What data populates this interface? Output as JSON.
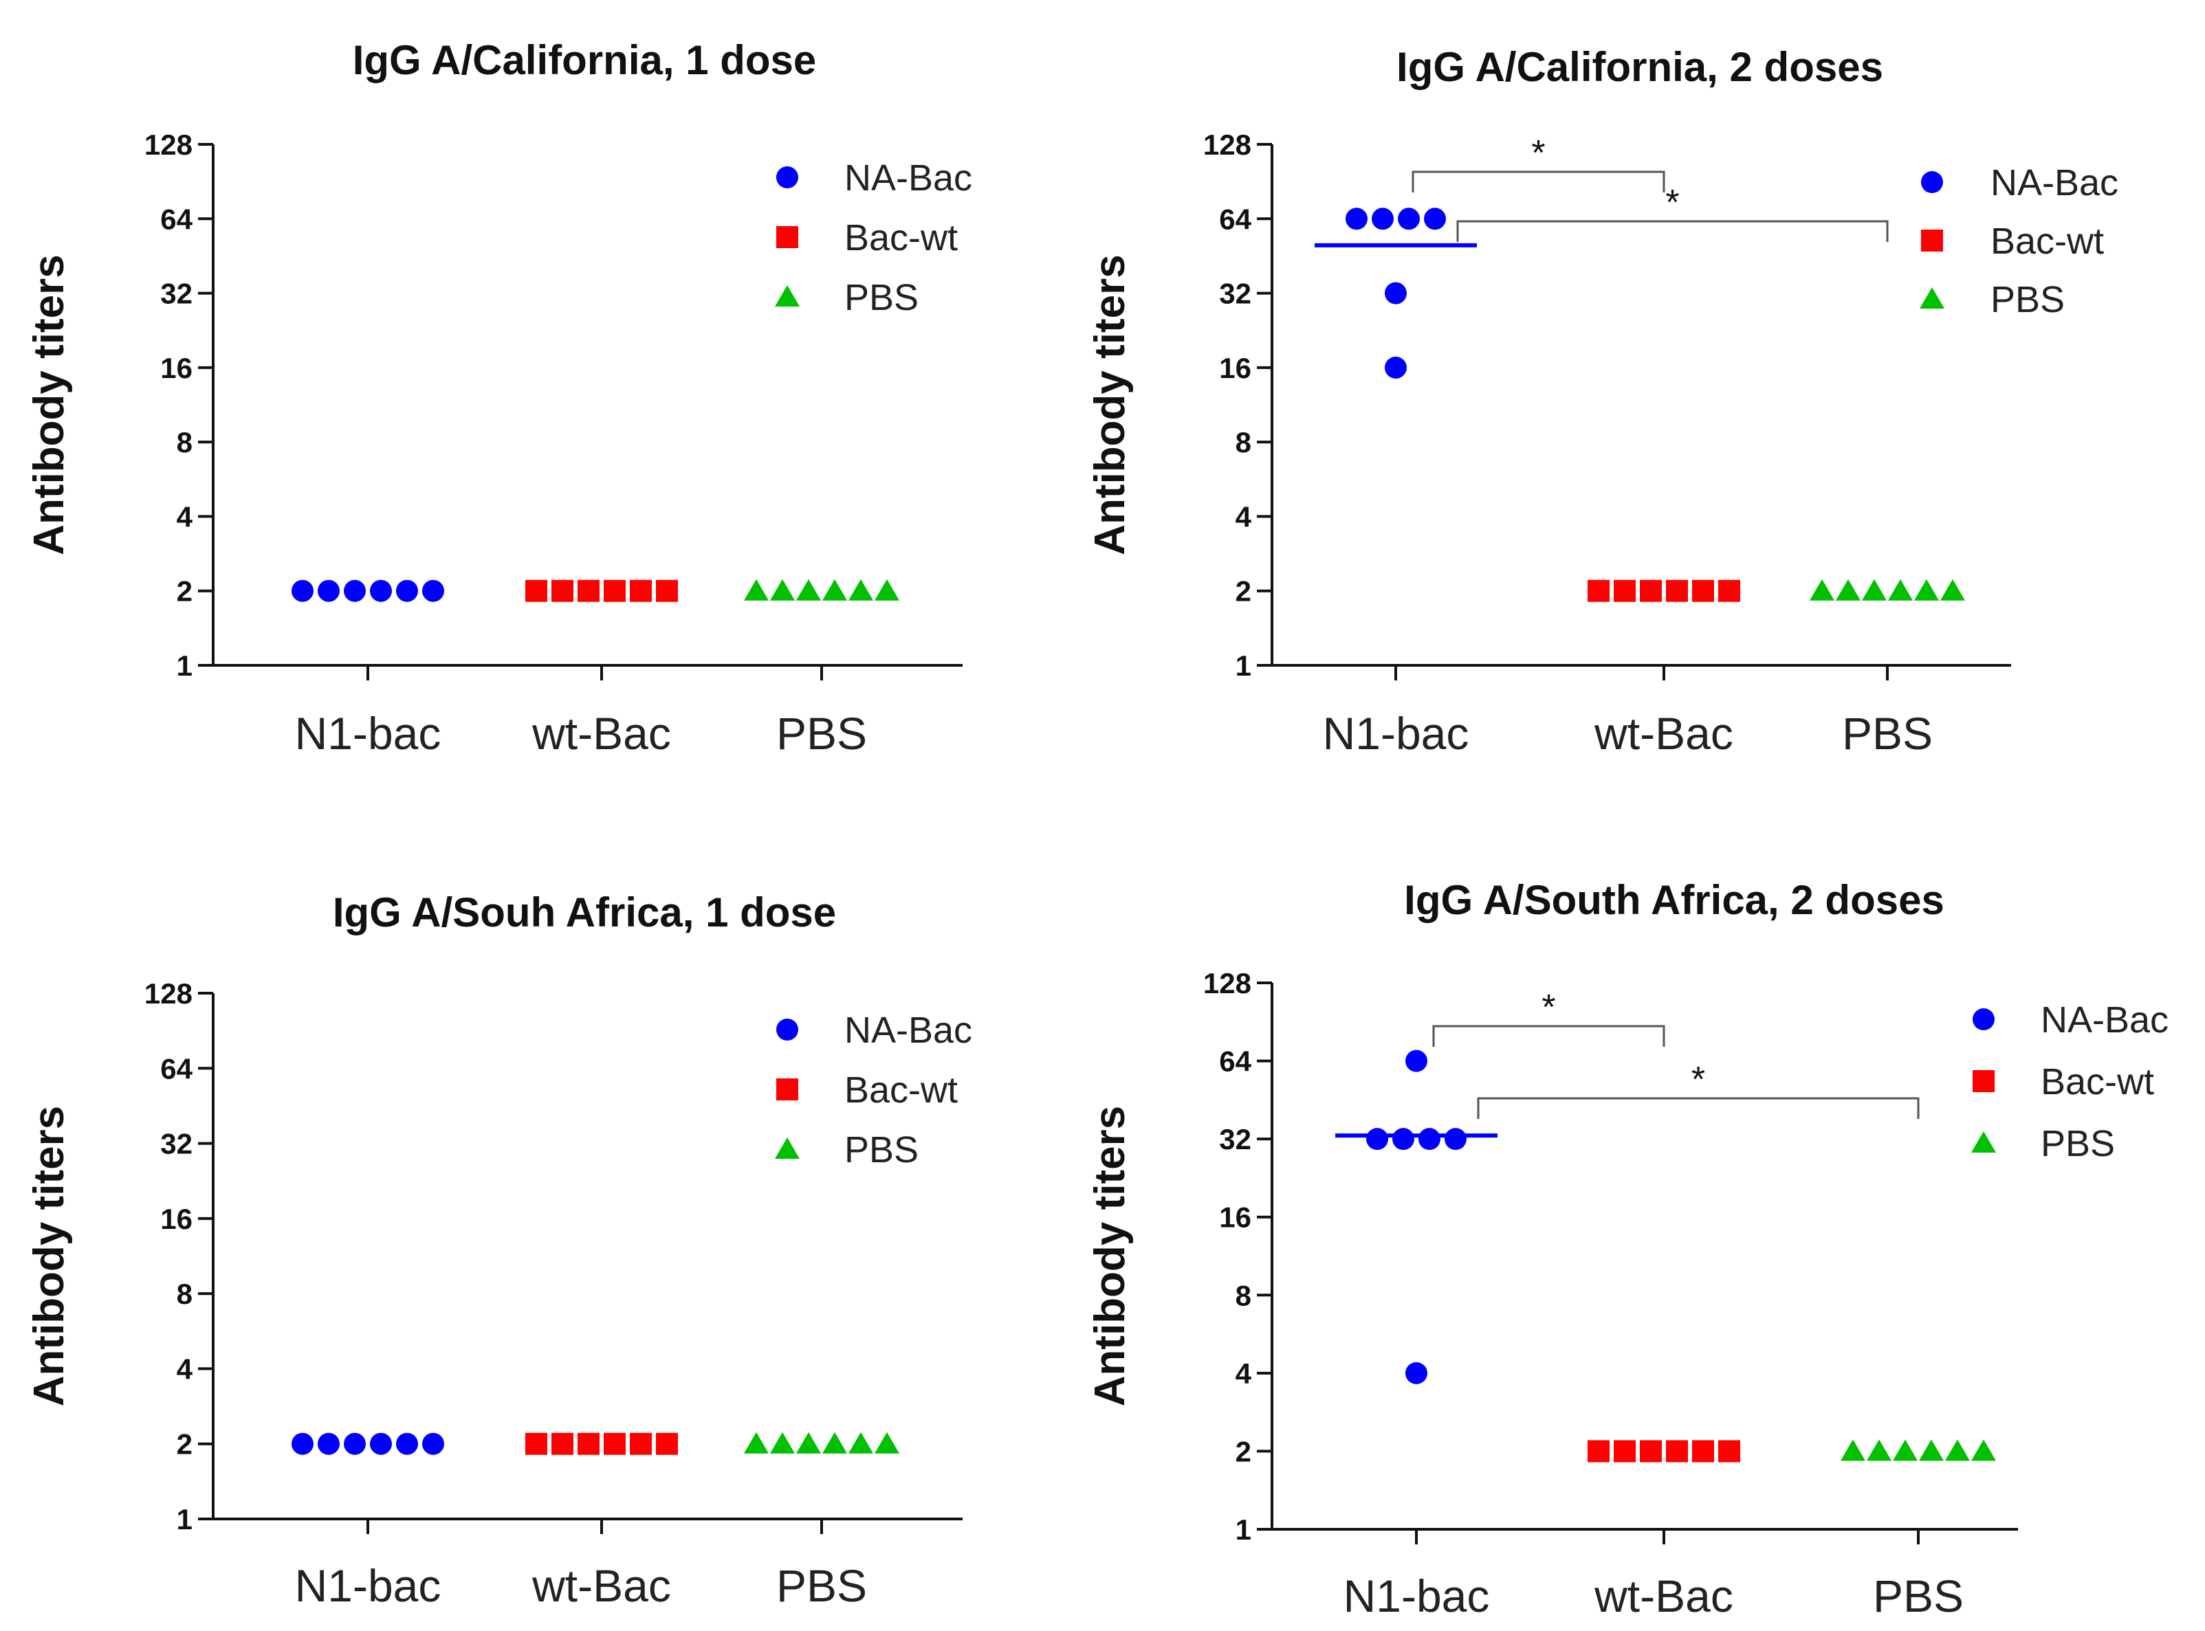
{
  "figure": {
    "description_label": ""
  },
  "chart_data": [
    {
      "type": "scatter",
      "title": "IgG A/California, 1 dose",
      "ylabel": "Antibody titers",
      "xlabel": "",
      "yscale": "log2",
      "ylim": [
        1,
        128
      ],
      "yticks": [
        "1",
        "2",
        "4",
        "8",
        "16",
        "32",
        "64",
        "128"
      ],
      "categories": [
        "N1-bac",
        "wt-Bac",
        "PBS"
      ],
      "legend": [
        {
          "label": "NA-Bac",
          "marker": "circle",
          "color": "#0000ff"
        },
        {
          "label": "Bac-wt",
          "marker": "square",
          "color": "#ff0000"
        },
        {
          "label": "PBS",
          "marker": "triangle",
          "color": "#00c000"
        }
      ],
      "series": [
        {
          "name": "NA-Bac",
          "category": "N1-bac",
          "values": [
            2,
            2,
            2,
            2,
            2,
            2
          ],
          "mean": 2,
          "show_mean": false
        },
        {
          "name": "Bac-wt",
          "category": "wt-Bac",
          "values": [
            2,
            2,
            2,
            2,
            2,
            2
          ],
          "mean": 2,
          "show_mean": false
        },
        {
          "name": "PBS",
          "category": "PBS",
          "values": [
            2,
            2,
            2,
            2,
            2,
            2
          ],
          "mean": 2,
          "show_mean": false
        }
      ],
      "significance": []
    },
    {
      "type": "scatter",
      "title": "IgG A/California, 2 doses",
      "ylabel": "Antibody titers",
      "xlabel": "",
      "yscale": "log2",
      "ylim": [
        1,
        128
      ],
      "yticks": [
        "1",
        "2",
        "4",
        "8",
        "16",
        "32",
        "64",
        "128"
      ],
      "categories": [
        "N1-bac",
        "wt-Bac",
        "PBS"
      ],
      "legend": [
        {
          "label": "NA-Bac",
          "marker": "circle",
          "color": "#0000ff"
        },
        {
          "label": "Bac-wt",
          "marker": "square",
          "color": "#ff0000"
        },
        {
          "label": "PBS",
          "marker": "triangle",
          "color": "#00c000"
        }
      ],
      "series": [
        {
          "name": "NA-Bac",
          "category": "N1-bac",
          "values": [
            64,
            64,
            64,
            64,
            32,
            16
          ],
          "mean": 50,
          "show_mean": true
        },
        {
          "name": "Bac-wt",
          "category": "wt-Bac",
          "values": [
            2,
            2,
            2,
            2,
            2,
            2
          ],
          "mean": 2,
          "show_mean": false
        },
        {
          "name": "PBS",
          "category": "PBS",
          "values": [
            2,
            2,
            2,
            2,
            2,
            2
          ],
          "mean": 2,
          "show_mean": false
        }
      ],
      "significance": [
        {
          "from": "N1-bac",
          "to": "wt-Bac",
          "label": "*"
        },
        {
          "from": "N1-bac",
          "to": "PBS",
          "label": "*"
        }
      ]
    },
    {
      "type": "scatter",
      "title": "IgG A/Souh Africa, 1 dose",
      "ylabel": "Antibody titers",
      "xlabel": "",
      "yscale": "log2",
      "ylim": [
        1,
        128
      ],
      "yticks": [
        "1",
        "2",
        "4",
        "8",
        "16",
        "32",
        "64",
        "128"
      ],
      "categories": [
        "N1-bac",
        "wt-Bac",
        "PBS"
      ],
      "legend": [
        {
          "label": "NA-Bac",
          "marker": "circle",
          "color": "#0000ff"
        },
        {
          "label": "Bac-wt",
          "marker": "square",
          "color": "#ff0000"
        },
        {
          "label": "PBS",
          "marker": "triangle",
          "color": "#00c000"
        }
      ],
      "series": [
        {
          "name": "NA-Bac",
          "category": "N1-bac",
          "values": [
            2,
            2,
            2,
            2,
            2,
            2
          ],
          "mean": 2,
          "show_mean": false
        },
        {
          "name": "Bac-wt",
          "category": "wt-Bac",
          "values": [
            2,
            2,
            2,
            2,
            2,
            2
          ],
          "mean": 2,
          "show_mean": false
        },
        {
          "name": "PBS",
          "category": "PBS",
          "values": [
            2,
            2,
            2,
            2,
            2,
            2
          ],
          "mean": 2,
          "show_mean": false
        }
      ],
      "significance": []
    },
    {
      "type": "scatter",
      "title": "IgG A/South Africa, 2 doses",
      "ylabel": "Antibody titers",
      "xlabel": "",
      "yscale": "log2",
      "ylim": [
        1,
        128
      ],
      "yticks": [
        "1",
        "2",
        "4",
        "8",
        "16",
        "32",
        "64",
        "128"
      ],
      "categories": [
        "N1-bac",
        "wt-Bac",
        "PBS"
      ],
      "legend": [
        {
          "label": "NA-Bac",
          "marker": "circle",
          "color": "#0000ff"
        },
        {
          "label": "Bac-wt",
          "marker": "square",
          "color": "#ff0000"
        },
        {
          "label": "PBS",
          "marker": "triangle",
          "color": "#00c000"
        }
      ],
      "series": [
        {
          "name": "NA-Bac",
          "category": "N1-bac",
          "values": [
            64,
            32,
            32,
            32,
            32,
            4
          ],
          "mean": 33,
          "show_mean": true
        },
        {
          "name": "Bac-wt",
          "category": "wt-Bac",
          "values": [
            2,
            2,
            2,
            2,
            2,
            2
          ],
          "mean": 2,
          "show_mean": false
        },
        {
          "name": "PBS",
          "category": "PBS",
          "values": [
            2,
            2,
            2,
            2,
            2,
            2
          ],
          "mean": 2,
          "show_mean": false
        }
      ],
      "significance": [
        {
          "from": "N1-bac",
          "to": "wt-Bac",
          "label": "*"
        },
        {
          "from": "N1-bac",
          "to": "PBS",
          "label": "*"
        }
      ]
    }
  ]
}
